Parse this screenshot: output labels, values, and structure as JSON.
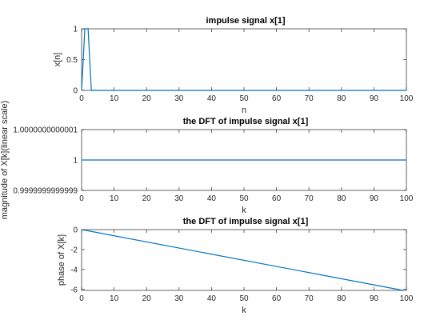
{
  "chart_data": [
    {
      "type": "line",
      "title": "impulse signal x[1]",
      "xlabel": "n",
      "ylabel": "x[n]",
      "xlim": [
        0,
        100
      ],
      "ylim": [
        0,
        1
      ],
      "xticks": [
        0,
        10,
        20,
        30,
        40,
        50,
        60,
        70,
        80,
        90,
        100
      ],
      "yticks": [
        0,
        0.5,
        1
      ],
      "ytick_labels": [
        "0",
        "0.5",
        "1"
      ],
      "series": [
        {
          "color": "#0072BD",
          "x": [
            0,
            1,
            2,
            3,
            100
          ],
          "y": [
            0,
            1,
            1,
            0,
            0
          ]
        }
      ]
    },
    {
      "type": "line",
      "title": "the DFT of impulse signal x[1]",
      "xlabel": "k",
      "ylabel": "magnitude of X[k](linear scale)",
      "xlim": [
        0,
        100
      ],
      "ylim": [
        0.9999999999999,
        1.0000000000001
      ],
      "xticks": [
        0,
        10,
        20,
        30,
        40,
        50,
        60,
        70,
        80,
        90,
        100
      ],
      "yticks": [
        0.9999999999999,
        1,
        1.0000000000001
      ],
      "ytick_labels": [
        "0.9999999999999",
        "1",
        "1.0000000000001"
      ],
      "series": [
        {
          "color": "#0072BD",
          "x": [
            0,
            100
          ],
          "y": [
            1,
            1
          ]
        }
      ]
    },
    {
      "type": "line",
      "title": "the DFT of impulse signal x[1]",
      "xlabel": "k",
      "ylabel": "phase of X[k]",
      "xlim": [
        0,
        100
      ],
      "ylim": [
        -6.1,
        0
      ],
      "xticks": [
        0,
        10,
        20,
        30,
        40,
        50,
        60,
        70,
        80,
        90,
        100
      ],
      "yticks": [
        -6,
        -4,
        -2,
        0
      ],
      "ytick_labels": [
        "-6",
        "-4",
        "-2",
        "0"
      ],
      "series": [
        {
          "color": "#0072BD",
          "x": [
            0,
            99
          ],
          "y": [
            0,
            -6.1
          ]
        }
      ]
    }
  ]
}
